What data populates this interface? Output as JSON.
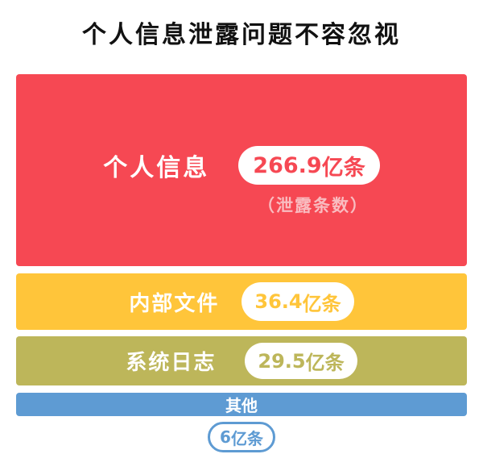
{
  "title": "个人信息泄露问题不容忽视",
  "subtitle_note": "（泄露条数）",
  "chart_data": {
    "type": "bar",
    "orientation": "stacked-blocks",
    "unit": "亿条",
    "categories": [
      "个人信息",
      "内部文件",
      "系统日志",
      "其他"
    ],
    "values": [
      266.9,
      36.4,
      29.5,
      6
    ],
    "value_labels": [
      "266.9",
      "36.4",
      "29.5",
      "6"
    ],
    "colors": [
      "#F64853",
      "#FFC53A",
      "#BDB65A",
      "#5E9BD3"
    ]
  }
}
